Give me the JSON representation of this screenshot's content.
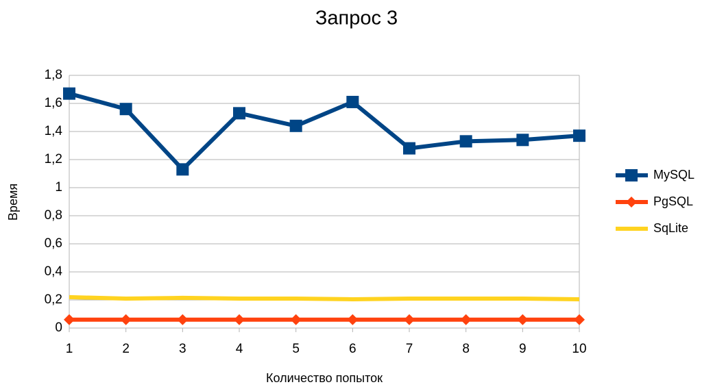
{
  "chart_data": {
    "type": "line",
    "title": "Запрос 3",
    "xlabel": "Количество попыток",
    "ylabel": "Время",
    "x": [
      1,
      2,
      3,
      4,
      5,
      6,
      7,
      8,
      9,
      10
    ],
    "xlim": [
      1,
      10
    ],
    "xticks": [
      1,
      2,
      3,
      4,
      5,
      6,
      7,
      8,
      9,
      10
    ],
    "ylim": [
      0,
      1.8
    ],
    "yticks": [
      0,
      {
        "value": 0.2,
        "label": "0,2"
      },
      {
        "value": 0.4,
        "label": "0,4"
      },
      {
        "value": 0.6,
        "label": "0,6"
      },
      {
        "value": 0.8,
        "label": "0,8"
      },
      1,
      {
        "value": 1.2,
        "label": "1,2"
      },
      {
        "value": 1.4,
        "label": "1,4"
      },
      {
        "value": 1.6,
        "label": "1,6"
      },
      {
        "value": 1.8,
        "label": "1,8"
      }
    ],
    "grid": true,
    "legend": "right",
    "series": [
      {
        "name": "MySQL",
        "color": "#004586",
        "marker": "square",
        "values": [
          1.67,
          1.56,
          1.13,
          1.53,
          1.44,
          1.61,
          1.28,
          1.33,
          1.34,
          1.37
        ]
      },
      {
        "name": "PgSQL",
        "color": "#ff420e",
        "marker": "diamond",
        "values": [
          0.06,
          0.06,
          0.06,
          0.06,
          0.06,
          0.06,
          0.06,
          0.06,
          0.06,
          0.06
        ]
      },
      {
        "name": "SqLite",
        "color": "#ffd320",
        "marker": "none",
        "values": [
          0.22,
          0.21,
          0.215,
          0.21,
          0.21,
          0.205,
          0.21,
          0.21,
          0.21,
          0.205
        ]
      }
    ]
  }
}
